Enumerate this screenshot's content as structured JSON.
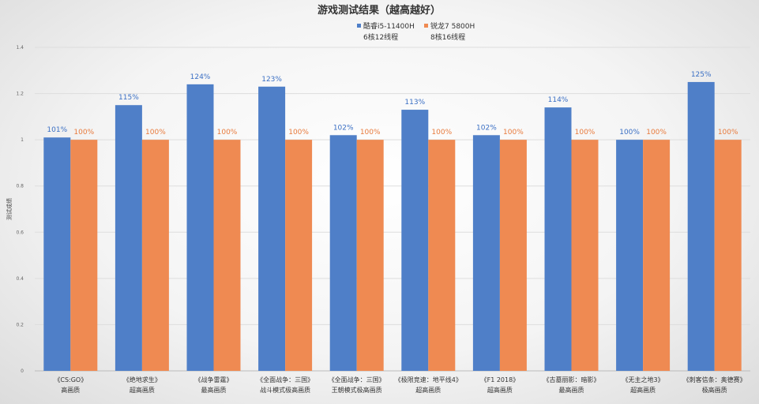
{
  "chart_data": {
    "type": "bar",
    "title": "游戏测试结果（越高越好）",
    "ylabel": "测试成绩",
    "xlabel": "",
    "ylim": [
      0,
      1.4
    ],
    "yticks": [
      "0",
      "0.2",
      "0.4",
      "0.6",
      "0.8",
      "1",
      "1.2",
      "1.4"
    ],
    "grid": true,
    "legend_position": "top",
    "categories": [
      [
        "《CS:GO》",
        "高画质"
      ],
      [
        "《绝地求生》",
        "超高画质"
      ],
      [
        "《战争雷霆》",
        "最高画质"
      ],
      [
        "《全面战争：三国》",
        "战斗模式极高画质"
      ],
      [
        "《全面战争：三国》",
        "王朝模式极高画质"
      ],
      [
        "《极限竞速：地平线4》",
        "超高画质"
      ],
      [
        "《F1 2018》",
        "超高画质"
      ],
      [
        "《古墓丽影：暗影》",
        "最高画质"
      ],
      [
        "《无主之地3》",
        "超高画质"
      ],
      [
        "《刺客信条：奥德赛》",
        "极高画质"
      ]
    ],
    "series": [
      {
        "name": [
          "酷睿i5-11400H",
          "6核12线程"
        ],
        "color": "#4f7fc8",
        "label_color": "#3a6fc4",
        "values": [
          1.01,
          1.15,
          1.24,
          1.23,
          1.02,
          1.13,
          1.02,
          1.14,
          1.0,
          1.25
        ],
        "labels": [
          "101%",
          "115%",
          "124%",
          "123%",
          "102%",
          "113%",
          "102%",
          "114%",
          "100%",
          "125%"
        ]
      },
      {
        "name": [
          "锐龙7 5800H",
          "8核16线程"
        ],
        "color": "#ef8a52",
        "label_color": "#e87a3c",
        "values": [
          1.0,
          1.0,
          1.0,
          1.0,
          1.0,
          1.0,
          1.0,
          1.0,
          1.0,
          1.0
        ],
        "labels": [
          "100%",
          "100%",
          "100%",
          "100%",
          "100%",
          "100%",
          "100%",
          "100%",
          "100%",
          "100%"
        ]
      }
    ]
  }
}
